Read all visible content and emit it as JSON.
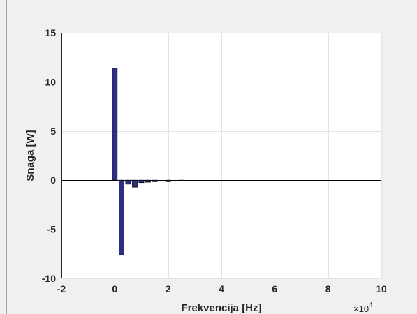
{
  "chart_data": {
    "type": "bar",
    "title": "",
    "xlabel": "Frekvencija [Hz]",
    "ylabel": "Snaga [W]",
    "x_exponent_prefix": "×10",
    "x_exponent": "4",
    "xlim": [
      -2,
      10
    ],
    "ylim": [
      -10,
      15
    ],
    "x_ticks": [
      -2,
      0,
      2,
      4,
      6,
      8,
      10
    ],
    "x_tick_labels": [
      "-2",
      "0",
      "2",
      "4",
      "6",
      "8",
      "10"
    ],
    "y_ticks": [
      -10,
      -5,
      0,
      5,
      10,
      15
    ],
    "y_tick_labels": [
      "-10",
      "-5",
      "0",
      "5",
      "10",
      "15"
    ],
    "grid": true,
    "bar_color": "#2e2e86",
    "x": [
      0,
      0.25,
      0.5,
      0.75,
      1.0,
      1.25,
      1.5,
      2.0,
      2.5
    ],
    "values": [
      11.4,
      -7.6,
      -0.4,
      -0.7,
      -0.25,
      -0.2,
      -0.15,
      -0.15,
      -0.08
    ]
  }
}
